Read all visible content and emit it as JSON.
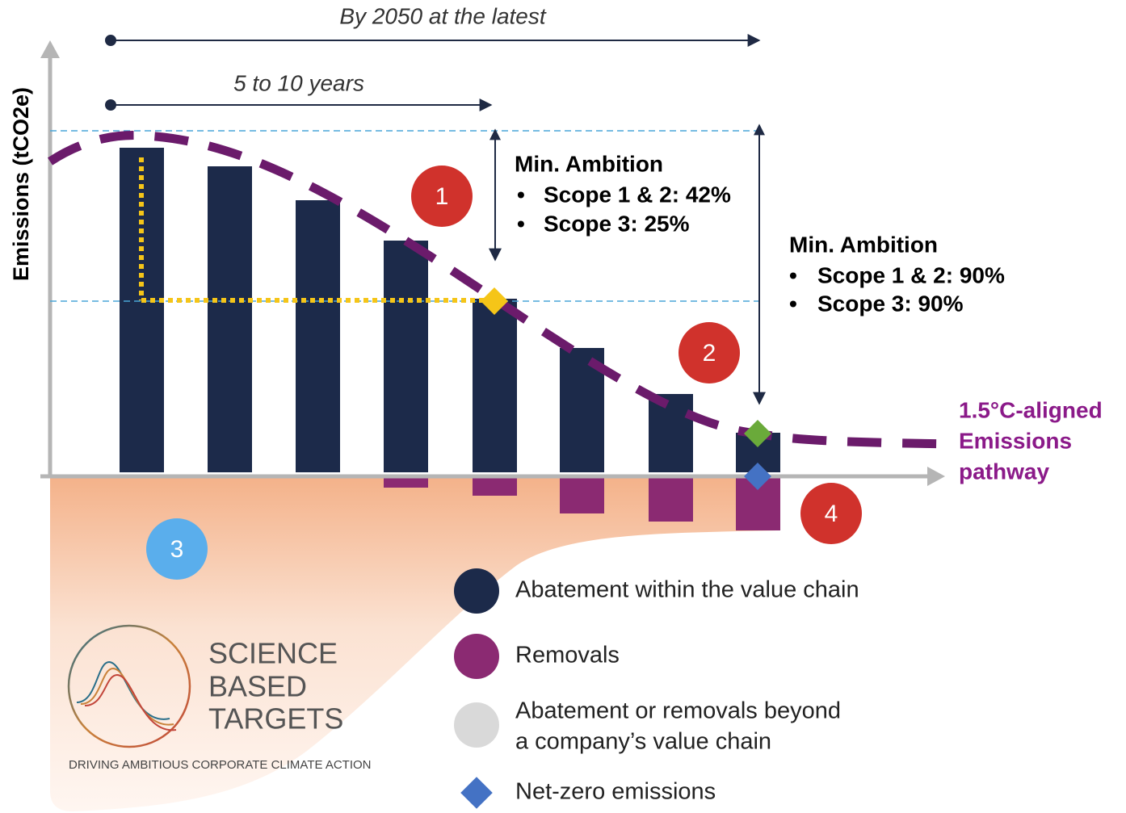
{
  "diagram": {
    "y_axis_label": "Emissions (tCO2e)",
    "timeline": {
      "long": "By 2050 at the latest",
      "short": "5 to 10 years"
    },
    "ambition_1": {
      "title": "Min. Ambition",
      "items": [
        "Scope 1 & 2: 42%",
        "Scope 3: 25%"
      ]
    },
    "ambition_2": {
      "title": "Min. Ambition",
      "items": [
        "Scope 1 & 2: 90%",
        "Scope 3: 90%"
      ]
    },
    "markers": [
      "1",
      "2",
      "3",
      "4"
    ],
    "pathway_label": [
      "1.5°C-aligned",
      "Emissions",
      "pathway"
    ],
    "legend": [
      {
        "lines": [
          "Abatement within the value chain"
        ]
      },
      {
        "lines": [
          "Removals"
        ]
      },
      {
        "lines": [
          "Abatement or removals beyond",
          "a company’s value chain"
        ]
      },
      {
        "lines": [
          "Net-zero emissions"
        ]
      }
    ],
    "logo": {
      "lines": [
        "SCIENCE",
        "BASED",
        "TARGETS"
      ],
      "tagline": "DRIVING AMBITIOUS CORPORATE CLIMATE ACTION"
    }
  }
}
